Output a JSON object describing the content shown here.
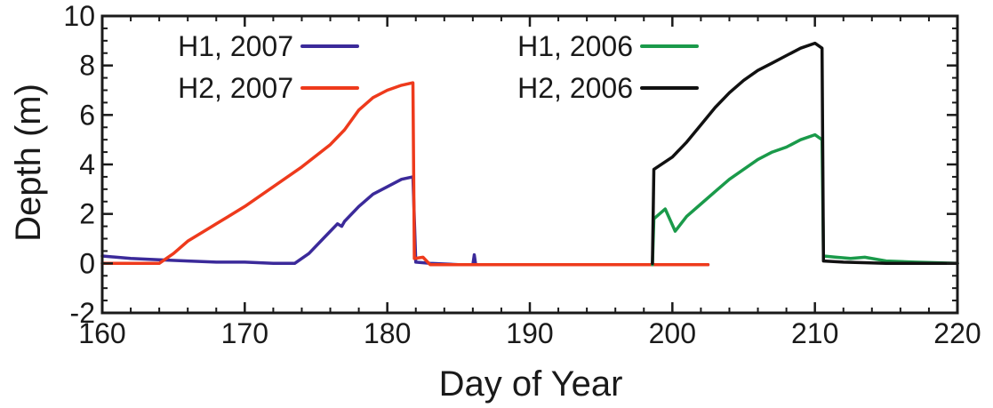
{
  "chart_data": {
    "type": "line",
    "xlabel": "Day of Year",
    "ylabel": "Depth (m)",
    "xlim": [
      160,
      220
    ],
    "ylim": [
      -2,
      10
    ],
    "xticks": [
      160,
      170,
      180,
      190,
      200,
      210,
      220
    ],
    "yticks": [
      -2,
      0,
      2,
      4,
      6,
      8,
      10
    ],
    "xtick_labels": [
      "160",
      "170",
      "180",
      "190",
      "200",
      "210",
      "220"
    ],
    "ytick_labels": [
      "-2",
      "0",
      "2",
      "4",
      "6",
      "8",
      "10"
    ],
    "grid": false,
    "legend_position": "top",
    "series": [
      {
        "name": "H1, 2007",
        "color": "#3b2a9a",
        "x": [
          160,
          162,
          164,
          166,
          168,
          170,
          172,
          173.5,
          174.5,
          175.5,
          176.5,
          176.8,
          177,
          178,
          179,
          180,
          181,
          181.8,
          182.0,
          183,
          185,
          186,
          186.1,
          186.2,
          188,
          192,
          196,
          200,
          202.5
        ],
        "y": [
          0.3,
          0.2,
          0.15,
          0.1,
          0.05,
          0.05,
          0.0,
          0.0,
          0.4,
          1.0,
          1.6,
          1.5,
          1.7,
          2.3,
          2.8,
          3.1,
          3.4,
          3.5,
          0.05,
          0.0,
          -0.05,
          -0.05,
          0.35,
          -0.05,
          -0.05,
          -0.05,
          -0.05,
          -0.05,
          -0.05
        ]
      },
      {
        "name": "H2, 2007",
        "color": "#ee3a1c",
        "x": [
          160,
          162,
          164,
          165,
          166,
          168,
          170,
          172,
          174,
          176,
          177,
          178,
          179,
          180,
          181,
          181.8,
          181.9,
          182.5,
          183,
          186,
          190,
          195,
          200,
          202.5
        ],
        "y": [
          0.0,
          0.0,
          0.0,
          0.4,
          0.9,
          1.6,
          2.3,
          3.1,
          3.9,
          4.8,
          5.4,
          6.2,
          6.7,
          7.0,
          7.2,
          7.3,
          0.2,
          0.25,
          -0.05,
          -0.05,
          -0.05,
          -0.05,
          -0.05,
          -0.05
        ]
      },
      {
        "name": "H1, 2006",
        "color": "#1a9a4a",
        "x": [
          198.6,
          198.7,
          199.5,
          200.2,
          201,
          202,
          203,
          204,
          205,
          206,
          207,
          208,
          209,
          210,
          210.5,
          210.6,
          211.5,
          212.5,
          213.5,
          215,
          217,
          220
        ],
        "y": [
          -0.05,
          1.8,
          2.2,
          1.3,
          1.9,
          2.4,
          2.9,
          3.4,
          3.8,
          4.2,
          4.5,
          4.7,
          5.0,
          5.2,
          5.0,
          0.3,
          0.25,
          0.2,
          0.25,
          0.1,
          0.05,
          0.0
        ]
      },
      {
        "name": "H2, 2006",
        "color": "#111111",
        "x": [
          198.6,
          198.7,
          200,
          201,
          202,
          203,
          204,
          205,
          206,
          207,
          208,
          209,
          210,
          210.5,
          210.6,
          212,
          215,
          218,
          220
        ],
        "y": [
          0.0,
          3.8,
          4.3,
          4.9,
          5.6,
          6.3,
          6.9,
          7.4,
          7.8,
          8.1,
          8.4,
          8.7,
          8.9,
          8.7,
          0.1,
          0.05,
          0.0,
          0.0,
          0.0
        ]
      }
    ]
  }
}
